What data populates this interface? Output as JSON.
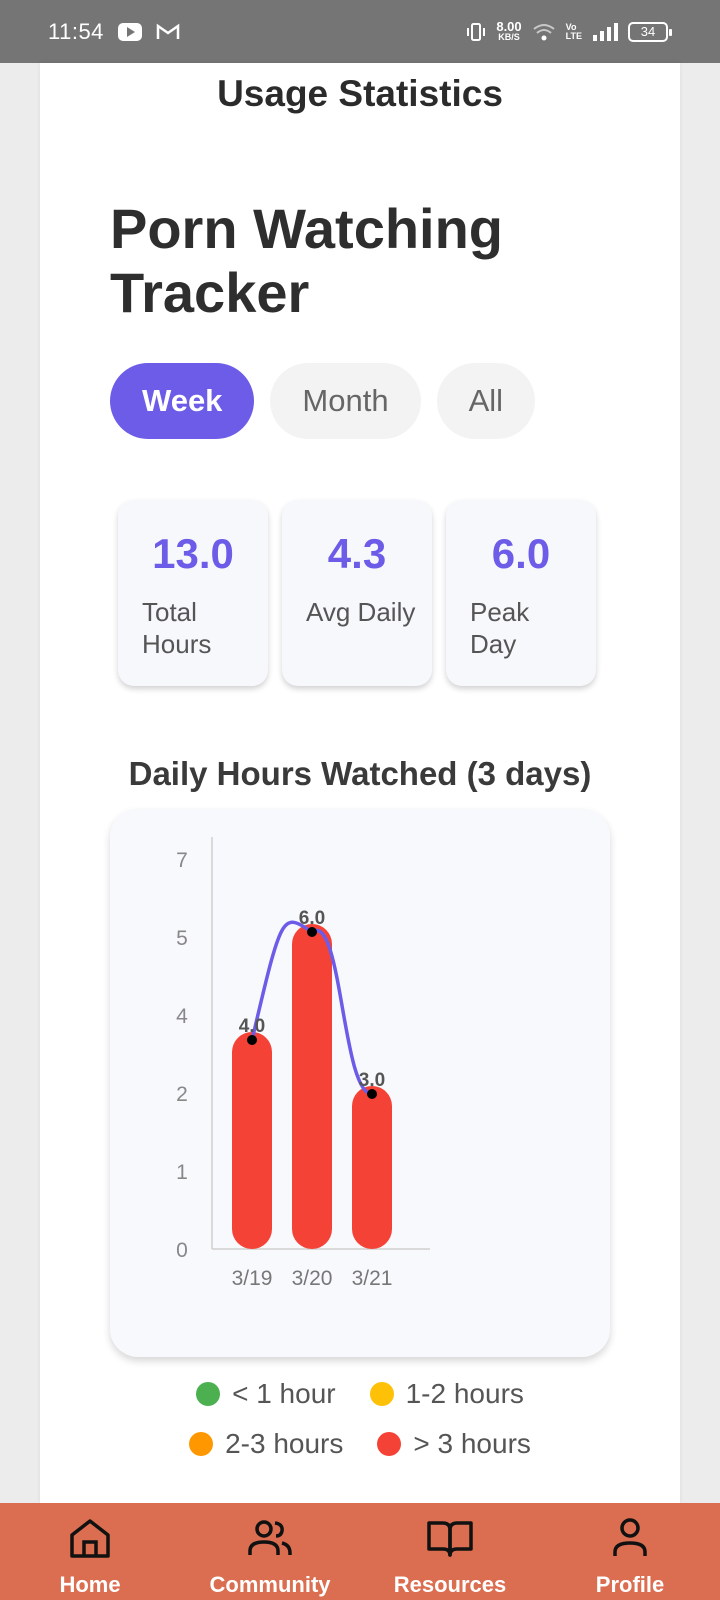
{
  "status_bar": {
    "time": "11:54",
    "net_speed_value": "8.00",
    "net_speed_unit": "KB/S",
    "volte_top": "Vo",
    "volte_bottom": "LTE",
    "battery": "34",
    "icons": [
      "youtube-icon",
      "gmail-icon",
      "vibrate-icon",
      "wifi-icon",
      "signal-icon",
      "battery-icon"
    ]
  },
  "header": {
    "title": "Usage Statistics"
  },
  "tracker": {
    "title": "Porn Watching Tracker"
  },
  "tabs": [
    {
      "label": "Week",
      "active": true
    },
    {
      "label": "Month",
      "active": false
    },
    {
      "label": "All",
      "active": false
    }
  ],
  "stats": [
    {
      "value": "13.0",
      "label": "Total Hours"
    },
    {
      "value": "4.3",
      "label": "Avg Daily"
    },
    {
      "value": "6.0",
      "label": "Peak Day"
    }
  ],
  "chart_heading": "Daily Hours Watched (3 days)",
  "chart_data": {
    "type": "bar",
    "categories": [
      "3/19",
      "3/20",
      "3/21"
    ],
    "values": [
      4.0,
      6.0,
      3.0
    ],
    "data_labels": [
      "4.0",
      "6.0",
      "3.0"
    ],
    "y_ticks": [
      "0",
      "1",
      "2",
      "4",
      "5",
      "7"
    ],
    "bar_color": "#f44336",
    "line_color": "#6c5ce7",
    "overlay": "smoothed line through bar tops",
    "grid": false
  },
  "legend": [
    {
      "label": "< 1 hour",
      "color": "#4caf50"
    },
    {
      "label": "1-2 hours",
      "color": "#ffc107"
    },
    {
      "label": "2-3 hours",
      "color": "#ff9800"
    },
    {
      "label": "> 3 hours",
      "color": "#f44336"
    }
  ],
  "colors": {
    "accent": "#6c5ce7",
    "nav_background": "#db6e50",
    "status_bar": "#757575"
  },
  "bottom_nav": [
    {
      "label": "Home",
      "icon": "home-icon"
    },
    {
      "label": "Community",
      "icon": "community-icon"
    },
    {
      "label": "Resources",
      "icon": "book-icon"
    },
    {
      "label": "Profile",
      "icon": "profile-icon"
    }
  ]
}
